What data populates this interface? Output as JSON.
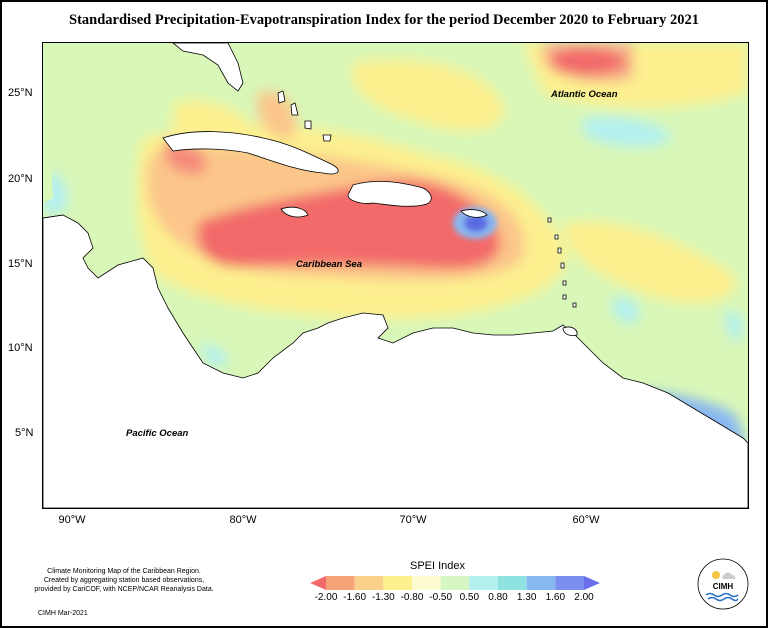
{
  "title": "Standardised Precipitation-Evapotranspiration Index for the period December 2020 to February 2021",
  "map": {
    "y_labels": [
      "25°N",
      "20°N",
      "15°N",
      "10°N",
      "5°N"
    ],
    "x_labels": [
      "90°W",
      "80°W",
      "70°W",
      "60°W"
    ],
    "ocean_labels": {
      "atlantic": "Atlantic Ocean",
      "caribbean": "Caribbean Sea",
      "pacific": "Pacific Ocean"
    }
  },
  "footer": {
    "line1": "Climate Monitoring Map of the Caribbean Region.",
    "line2": "Created by aggregating station based observations,",
    "line3": "provided by CariCOF, with NCEP/NCAR Reanalysis Data.",
    "credit": "CIMH  Mar-2021"
  },
  "legend": {
    "title": "SPEI Index",
    "ticks": [
      "-2.00",
      "-1.60",
      "-1.30",
      "-0.80",
      "-0.50",
      "0.50",
      "0.80",
      "1.30",
      "1.60",
      "2.00"
    ],
    "colors": [
      "#f26b6b",
      "#f5a47a",
      "#fbd08a",
      "#fdf08f",
      "#fdfbd0",
      "#d6f7c4",
      "#b3f0f0",
      "#8ee3e0",
      "#88b8f2",
      "#7b8ff0",
      "#6a6ee8"
    ]
  },
  "logo": {
    "text": "CIMH",
    "icon": "cimh-logo-icon"
  }
}
